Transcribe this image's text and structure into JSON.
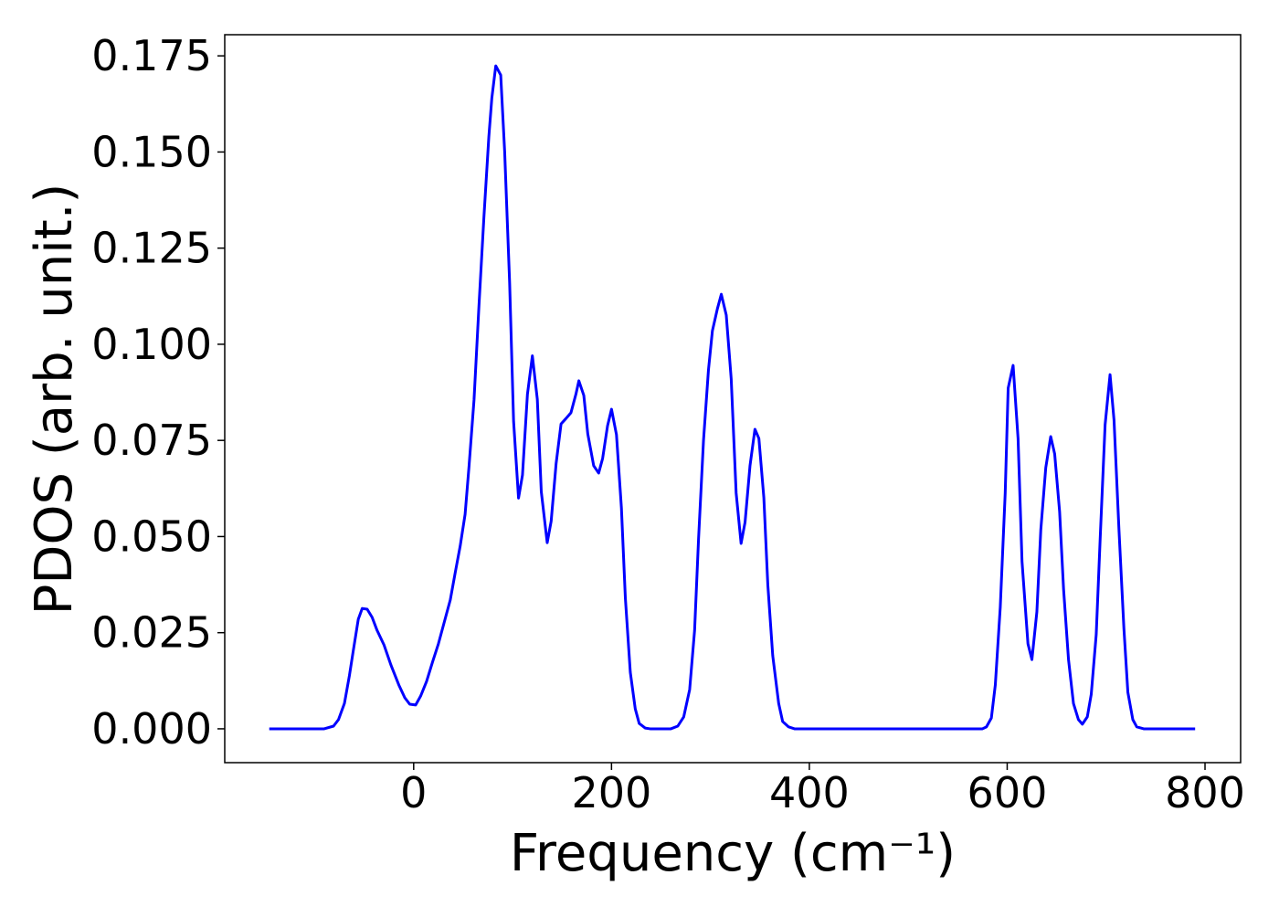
{
  "chart_data": {
    "type": "line",
    "x_label": "Frequency (cm⁻¹)",
    "y_label": "PDOS (arb. unit.)",
    "color": "#0000ff",
    "xlim": [
      -191,
      836
    ],
    "ylim": [
      -0.0088,
      0.1805
    ],
    "xticks": [
      0,
      200,
      400,
      600,
      800
    ],
    "yticks": [
      {
        "value": 0,
        "label": "0.000"
      },
      0.025,
      {
        "value": 0.05,
        "label": "0.050"
      },
      0.075,
      {
        "value": 0.1,
        "label": "0.100"
      },
      0.125,
      {
        "value": 0.15,
        "label": "0.150"
      },
      0.175
    ],
    "x": [
      -146,
      -90.5,
      -81,
      -76,
      -70,
      -65,
      -61,
      -56,
      -52,
      -47,
      -42,
      -37,
      -30,
      -23,
      -15,
      -9,
      -4,
      2,
      7,
      13,
      19,
      25,
      31,
      37,
      42,
      47,
      52,
      56,
      61,
      66,
      71,
      76,
      79,
      83,
      88,
      92,
      97,
      101,
      106,
      110,
      115,
      120,
      125,
      129,
      135,
      139,
      144,
      149,
      154,
      159,
      164,
      167,
      172,
      176,
      182,
      187,
      191,
      196,
      200,
      205,
      210,
      214,
      219,
      224,
      228,
      234,
      239,
      260,
      267,
      273,
      279,
      284,
      288,
      293,
      298,
      302,
      307,
      311,
      316,
      321,
      326,
      331,
      335,
      340,
      345,
      349,
      354,
      358,
      363,
      369,
      373,
      379,
      385,
      575,
      579,
      584,
      588,
      593,
      598,
      601,
      606,
      611,
      615,
      621,
      625,
      630,
      634,
      639,
      644,
      648,
      653,
      657,
      662,
      667,
      672,
      676,
      681,
      685,
      690,
      694,
      699,
      704,
      708,
      713,
      718,
      722,
      727,
      731,
      738,
      790
    ],
    "values": [
      0,
      0,
      0.0007,
      0.0024,
      0.0066,
      0.0138,
      0.0204,
      0.0285,
      0.0313,
      0.0311,
      0.029,
      0.0256,
      0.0218,
      0.0166,
      0.0114,
      0.0081,
      0.0064,
      0.0062,
      0.0085,
      0.0123,
      0.0173,
      0.0221,
      0.0278,
      0.0335,
      0.0406,
      0.0475,
      0.0558,
      0.0684,
      0.0855,
      0.11,
      0.133,
      0.154,
      0.164,
      0.1724,
      0.17,
      0.15,
      0.116,
      0.08,
      0.06,
      0.066,
      0.087,
      0.097,
      0.0857,
      0.0617,
      0.0484,
      0.054,
      0.069,
      0.0793,
      0.0807,
      0.0822,
      0.087,
      0.0905,
      0.0867,
      0.0767,
      0.0684,
      0.0665,
      0.0703,
      0.0788,
      0.0831,
      0.0765,
      0.0575,
      0.034,
      0.0147,
      0.0052,
      0.0014,
      0.0002,
      0,
      0,
      0.0007,
      0.0031,
      0.0102,
      0.0256,
      0.0494,
      0.075,
      0.0933,
      0.1035,
      0.1092,
      0.113,
      0.1076,
      0.091,
      0.0613,
      0.0482,
      0.0537,
      0.0684,
      0.0779,
      0.0755,
      0.0601,
      0.0375,
      0.019,
      0.0066,
      0.0019,
      0.0005,
      0,
      0,
      0.0005,
      0.0028,
      0.0114,
      0.0316,
      0.0613,
      0.0886,
      0.0945,
      0.0755,
      0.0435,
      0.0221,
      0.018,
      0.0304,
      0.0518,
      0.0679,
      0.076,
      0.0715,
      0.0565,
      0.0363,
      0.018,
      0.0066,
      0.0024,
      0.0012,
      0.0031,
      0.009,
      0.0245,
      0.0494,
      0.0791,
      0.0921,
      0.0803,
      0.0518,
      0.0261,
      0.0095,
      0.0024,
      0.0005,
      0,
      0
    ]
  }
}
